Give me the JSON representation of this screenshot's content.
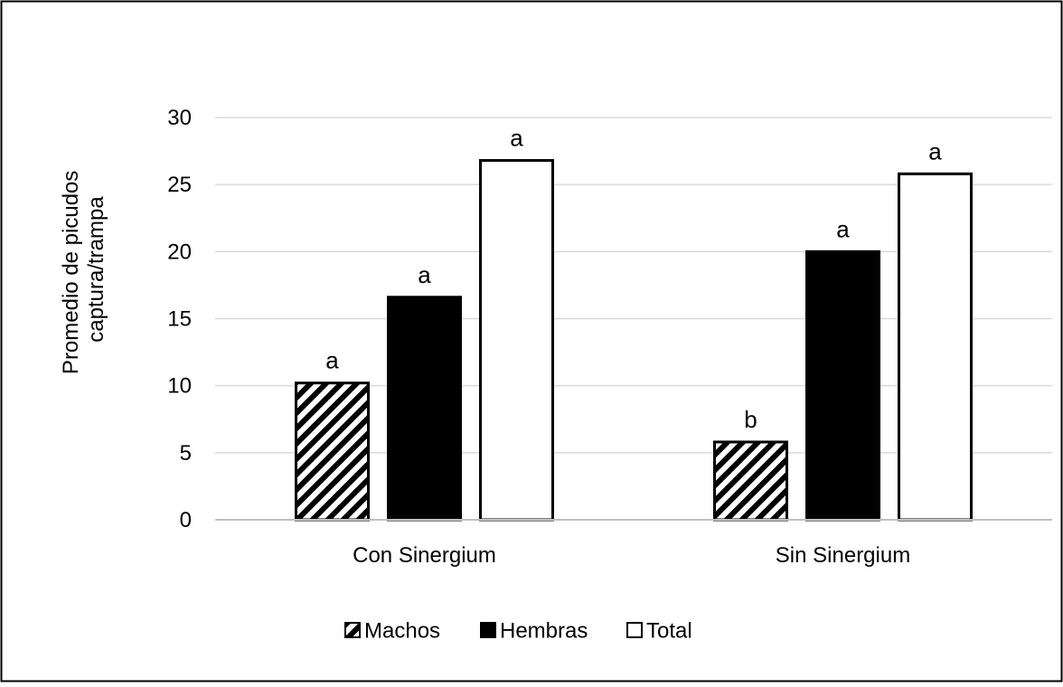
{
  "chart_data": {
    "type": "bar",
    "categories": [
      "Con Sinergium",
      "Sin Sinergium"
    ],
    "series": [
      {
        "name": "Machos",
        "values": [
          10.2,
          5.8
        ],
        "labels": [
          "a",
          "b"
        ],
        "fill": "hatch",
        "color": "#000000"
      },
      {
        "name": "Hembras",
        "values": [
          16.6,
          20.0
        ],
        "labels": [
          "a",
          "a"
        ],
        "fill": "solid",
        "color": "#000000"
      },
      {
        "name": "Total",
        "values": [
          26.8,
          25.8
        ],
        "labels": [
          "a",
          "a"
        ],
        "fill": "none",
        "color": "#ffffff"
      }
    ],
    "ylabel_lines": [
      "Promedio de picudos",
      "captura/trampa"
    ],
    "ylim": [
      0,
      30
    ],
    "yticks": [
      "0",
      "5",
      "10",
      "15",
      "20",
      "25",
      "30"
    ],
    "grid": true,
    "legend_position": "bottom",
    "colors": {
      "axis": "#bfbfbf",
      "grid": "#d9d9d9",
      "border": "#000000"
    }
  }
}
